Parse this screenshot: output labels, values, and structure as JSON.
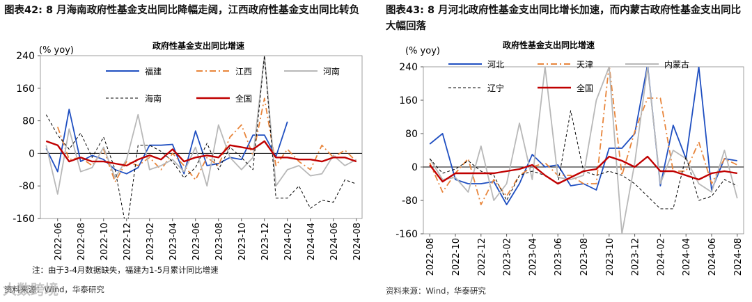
{
  "left": {
    "title": "图表42:  8 月海南政府性基金支出同比降幅走阔，江西政府性基金支出同比转负",
    "note": "注：由于3-4月数据缺失，福建为1-5月累计同比增速",
    "source": "资料来源：Wind，华泰研究",
    "watermark": "大数跨境"
  },
  "right": {
    "title": "图表43:  8 月河北政府性基金支出同比增长加速，而内蒙古政府性基金支出同比大幅回落",
    "source": "资料来源：Wind，华泰研究"
  },
  "chart_data": [
    {
      "type": "line",
      "title": "政府性基金支出同比增速",
      "ylabel": "(% yoy)",
      "ylim": [
        -160,
        240
      ],
      "yticks": [
        "240",
        "160",
        "80",
        "0",
        "-80",
        "-160"
      ],
      "x": [
        "2022-05",
        "2022-06",
        "2022-07",
        "2022-08",
        "2022-09",
        "2022-10",
        "2022-11",
        "2022-12",
        "2023-01",
        "2023-02",
        "2023-03",
        "2023-04",
        "2023-05",
        "2023-06",
        "2023-07",
        "2023-08",
        "2023-09",
        "2023-10",
        "2023-11",
        "2023-12",
        "2024-01",
        "2024-02",
        "2024-03",
        "2024-04",
        "2024-05",
        "2024-06",
        "2024-07",
        "2024-08"
      ],
      "xtick_labels": [
        "2022-06",
        "2022-08",
        "2022-10",
        "2022-12",
        "2023-02",
        "2023-04",
        "2023-06",
        "2023-08",
        "2023-10",
        "2023-12",
        "2024-02",
        "2024-04",
        "2024-06",
        "2024-08"
      ],
      "legend": "top",
      "series": [
        {
          "name": "福建",
          "color": "#1f4fc1",
          "dash": "solid",
          "values": [
            12,
            -45,
            108,
            -20,
            -5,
            -15,
            -40,
            -50,
            -35,
            20,
            20,
            22,
            -50,
            55,
            -30,
            -25,
            -10,
            -15,
            45,
            45,
            -8,
            78,
            null,
            null,
            null,
            -42,
            null,
            null
          ]
        },
        {
          "name": "江西",
          "color": "#e8853b",
          "dash": "dashdot",
          "values": [
            null,
            65,
            -15,
            -10,
            -30,
            10,
            -70,
            -20,
            -30,
            -10,
            -40,
            0,
            -30,
            -65,
            -10,
            -30,
            40,
            70,
            -5,
            135,
            -30,
            10,
            -20,
            -40,
            20,
            -10,
            8,
            -20
          ]
        },
        {
          "name": "河南",
          "color": "#b8b8b8",
          "dash": "solid",
          "values": [
            20,
            -100,
            60,
            -45,
            -35,
            15,
            -60,
            -15,
            95,
            -40,
            -30,
            -15,
            -45,
            15,
            -80,
            70,
            -10,
            -40,
            -10,
            240,
            -80,
            -40,
            -30,
            -55,
            -50,
            -5,
            -30,
            -15
          ]
        },
        {
          "name": "海南",
          "color": "#000000",
          "dash": "dashed",
          "values": [
            95,
            45,
            10,
            50,
            -10,
            40,
            -40,
            -190,
            20,
            20,
            5,
            -20,
            -60,
            -35,
            25,
            -40,
            15,
            -10,
            -40,
            240,
            -110,
            -110,
            -80,
            -135,
            -115,
            -120,
            -65,
            -75
          ]
        },
        {
          "name": "全国",
          "color": "#c00000",
          "dash": "solid",
          "values": [
            30,
            20,
            -20,
            -10,
            -20,
            -20,
            -25,
            -30,
            -15,
            -5,
            -15,
            10,
            -20,
            -10,
            -5,
            -10,
            20,
            15,
            10,
            30,
            -10,
            -10,
            -15,
            -15,
            -20,
            -10,
            -10,
            -20
          ]
        }
      ]
    },
    {
      "type": "line",
      "title": "政府性基金支出同比增速",
      "ylabel": "(% yoy)",
      "ylim": [
        -160,
        240
      ],
      "yticks": [
        "240",
        "160",
        "80",
        "0",
        "-80",
        "-160"
      ],
      "x": [
        "2022-08",
        "2022-09",
        "2022-10",
        "2022-11",
        "2022-12",
        "2023-01",
        "2023-02",
        "2023-03",
        "2023-04",
        "2023-05",
        "2023-06",
        "2023-07",
        "2023-08",
        "2023-09",
        "2023-10",
        "2023-11",
        "2023-12",
        "2024-01",
        "2024-02",
        "2024-03",
        "2024-04",
        "2024-05",
        "2024-06",
        "2024-07",
        "2024-08"
      ],
      "xtick_labels": [
        "2022-08",
        "2022-10",
        "2022-12",
        "2023-02",
        "2023-04",
        "2023-06",
        "2023-08",
        "2023-10",
        "2023-12",
        "2024-02",
        "2024-04",
        "2024-06",
        "2024-08"
      ],
      "legend": "top",
      "series": [
        {
          "name": "河北",
          "color": "#1f4fc1",
          "dash": "solid",
          "values": [
            55,
            80,
            -30,
            -40,
            -40,
            -35,
            -90,
            -40,
            30,
            0,
            5,
            -45,
            -40,
            -55,
            45,
            45,
            80,
            245,
            -45,
            100,
            20,
            240,
            -55,
            20,
            15
          ]
        },
        {
          "name": "天津",
          "color": "#e8853b",
          "dash": "dashdot",
          "values": [
            10,
            -60,
            -15,
            20,
            -90,
            -30,
            -70,
            -20,
            0,
            10,
            -20,
            -20,
            -40,
            -40,
            245,
            -20,
            85,
            165,
            165,
            -10,
            -10,
            60,
            -40,
            20,
            5
          ]
        },
        {
          "name": "内蒙古",
          "color": "#b8b8b8",
          "dash": "solid",
          "values": [
            20,
            -30,
            -25,
            -60,
            50,
            -80,
            -40,
            105,
            -30,
            240,
            -25,
            -30,
            -20,
            160,
            240,
            -160,
            10,
            240,
            -40,
            40,
            20,
            -40,
            -60,
            40,
            -75
          ]
        },
        {
          "name": "辽宁",
          "color": "#000000",
          "dash": "dashed",
          "values": [
            20,
            -15,
            -5,
            15,
            -10,
            -20,
            -80,
            -20,
            -10,
            -20,
            -40,
            135,
            -10,
            -20,
            -10,
            -20,
            -40,
            -70,
            -100,
            -100,
            25,
            -80,
            -70,
            -30,
            -45
          ]
        },
        {
          "name": "全国",
          "color": "#c00000",
          "dash": "solid",
          "values": [
            5,
            -35,
            -15,
            -15,
            -15,
            -15,
            -10,
            -5,
            5,
            -20,
            -40,
            -25,
            -10,
            -5,
            25,
            15,
            0,
            25,
            -10,
            -10,
            -20,
            -30,
            -15,
            -10,
            -15
          ]
        }
      ]
    }
  ]
}
